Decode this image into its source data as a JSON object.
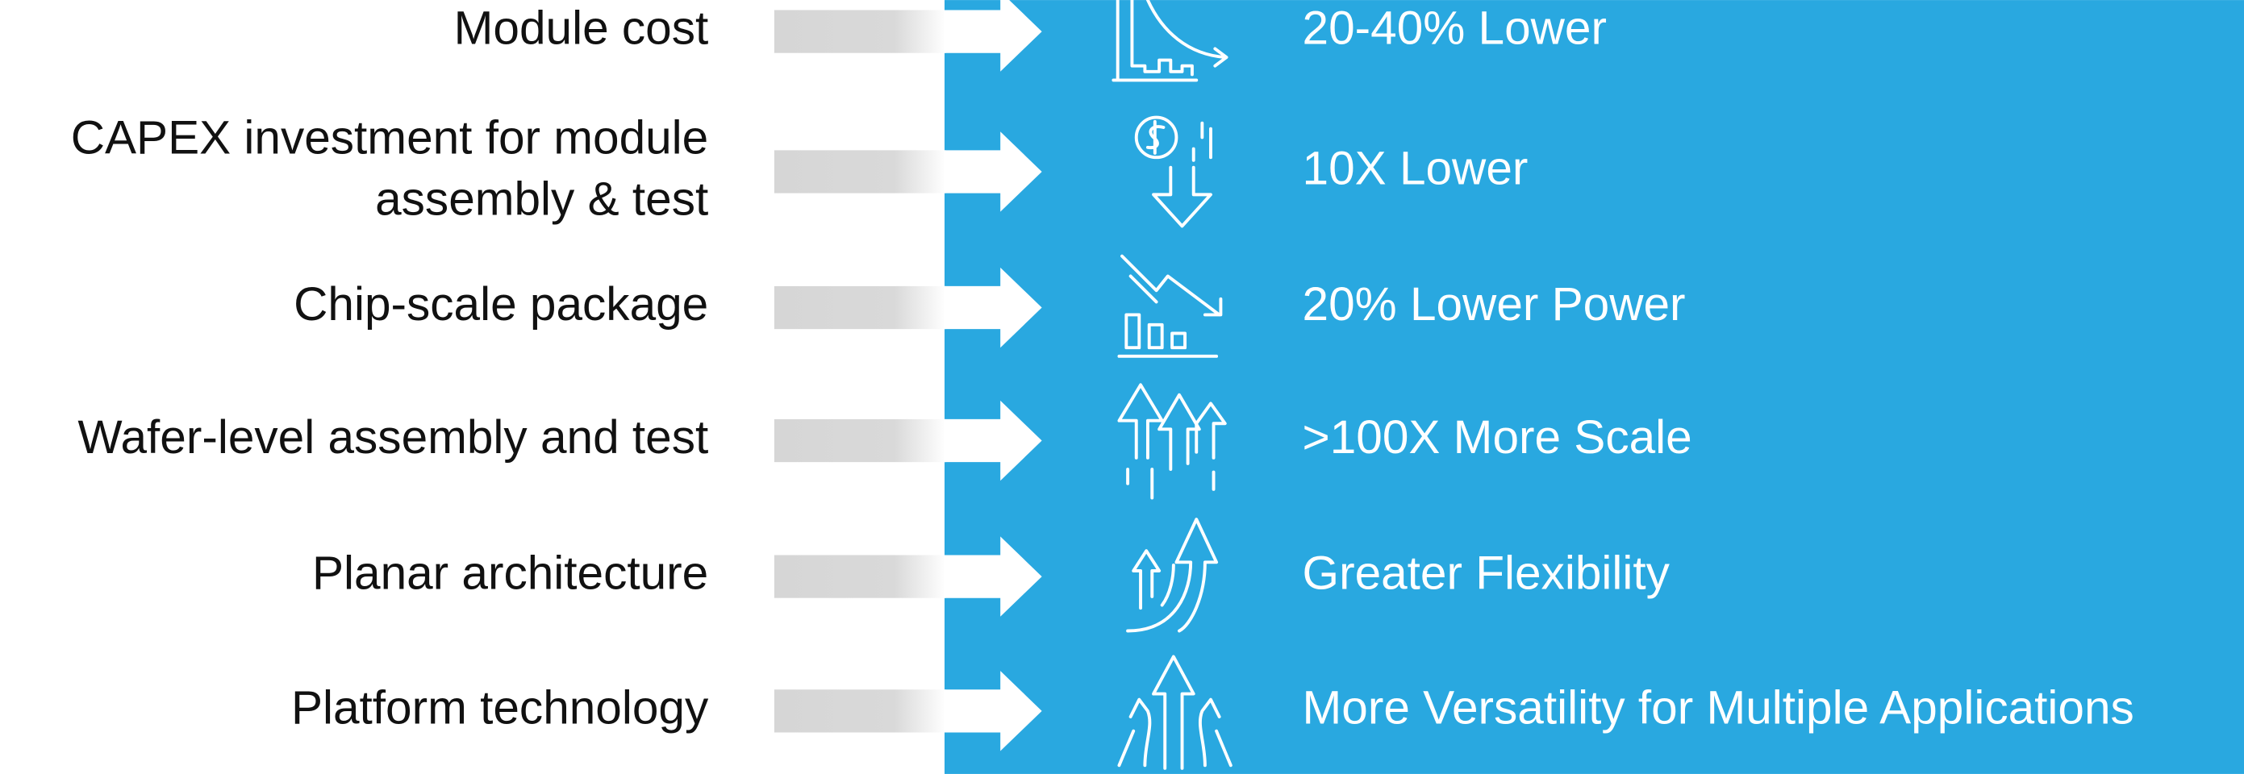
{
  "rows": [
    {
      "label": [
        "Module cost"
      ],
      "result": "20-40% Lower"
    },
    {
      "label": [
        "CAPEX investment for module",
        "assembly & test"
      ],
      "result": "10X Lower"
    },
    {
      "label": [
        "Chip-scale package"
      ],
      "result": "20% Lower Power"
    },
    {
      "label": [
        "Wafer-level assembly and test"
      ],
      "result": ">100X More Scale"
    },
    {
      "label": [
        "Planar architecture"
      ],
      "result": "Greater Flexibility"
    },
    {
      "label": [
        "Platform technology"
      ],
      "result": "More Versatility for Multiple Applications"
    }
  ]
}
